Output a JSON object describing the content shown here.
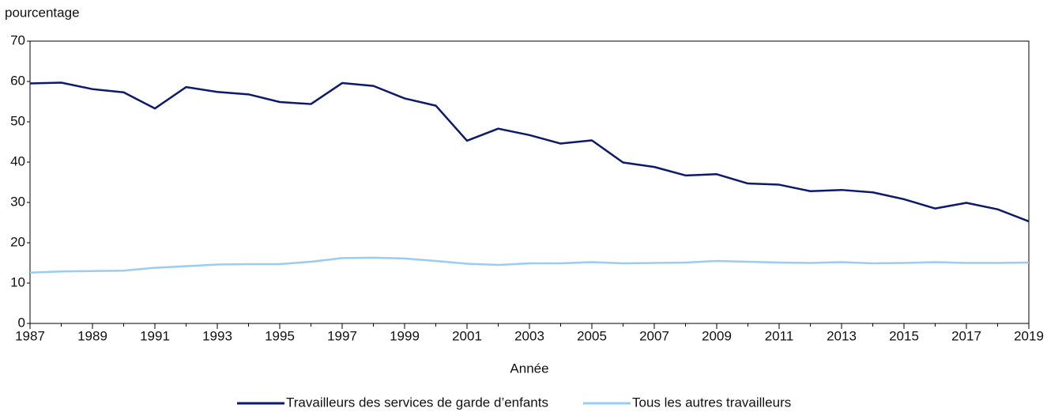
{
  "chart_data": {
    "type": "line",
    "y_label": "pourcentage",
    "x_label": "Année",
    "x": [
      1987,
      1988,
      1989,
      1990,
      1991,
      1992,
      1993,
      1994,
      1995,
      1996,
      1997,
      1998,
      1999,
      2000,
      2001,
      2002,
      2003,
      2004,
      2005,
      2006,
      2007,
      2008,
      2009,
      2010,
      2011,
      2012,
      2013,
      2014,
      2015,
      2016,
      2017,
      2018,
      2019
    ],
    "series": [
      {
        "name": "Travailleurs des services de garde d’enfants",
        "color": "#0b1a6b",
        "values": [
          59.5,
          59.7,
          58.1,
          57.3,
          53.3,
          58.6,
          57.4,
          56.8,
          54.9,
          54.4,
          59.6,
          58.9,
          55.8,
          54.0,
          45.3,
          48.3,
          46.7,
          44.6,
          45.4,
          39.9,
          38.8,
          36.7,
          37.0,
          34.7,
          34.4,
          32.8,
          33.1,
          32.5,
          30.8,
          28.5,
          29.9,
          28.3,
          25.3
        ]
      },
      {
        "name": "Tous les autres travailleurs",
        "color": "#99ccf5",
        "values": [
          12.6,
          12.9,
          13.0,
          13.1,
          13.8,
          14.2,
          14.6,
          14.7,
          14.7,
          15.3,
          16.2,
          16.3,
          16.1,
          15.5,
          14.8,
          14.5,
          14.9,
          14.9,
          15.2,
          14.9,
          15.0,
          15.1,
          15.5,
          15.3,
          15.1,
          15.0,
          15.2,
          14.9,
          15.0,
          15.2,
          15.0,
          15.0,
          15.1
        ]
      }
    ],
    "xlim": [
      1987,
      2019
    ],
    "xticks": [
      1987,
      1989,
      1991,
      1993,
      1995,
      1997,
      1999,
      2001,
      2003,
      2005,
      2007,
      2009,
      2011,
      2013,
      2015,
      2017,
      2019
    ],
    "ylim": [
      0,
      70
    ],
    "yticks": [
      0,
      10,
      20,
      30,
      40,
      50,
      60,
      70
    ],
    "legend": "bottom"
  }
}
